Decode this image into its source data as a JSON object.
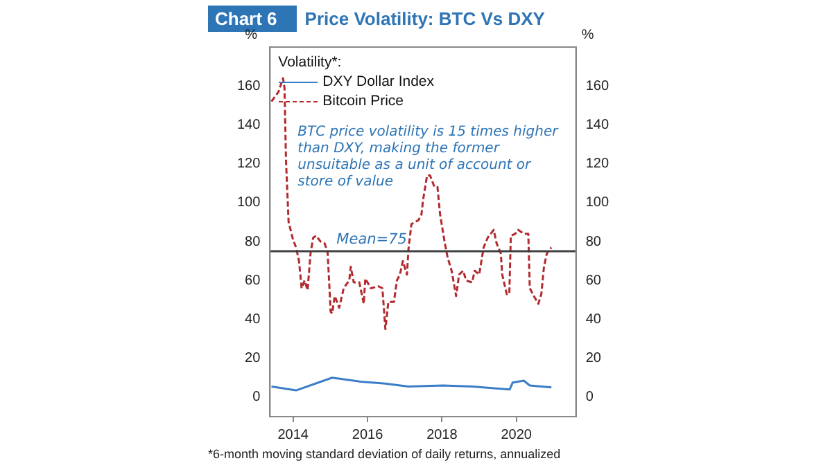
{
  "chart_data": {
    "type": "line",
    "title": "Price Volatility: BTC Vs DXY",
    "ylabel": "%",
    "y2label": "%",
    "legend_title": "Volatility*:",
    "legend": "top left",
    "grid": false,
    "marker": "none",
    "annotations": [
      "Chart 6",
      "BTC price volatility is 15 times higher than DXY, making the former unsuitable as a unit of account or store of value",
      "*6-month moving standard deviation of daily returns, annualized"
    ],
    "xlim": [
      2013.38,
      2021.6
    ],
    "xticks": [
      2014,
      2016,
      2018,
      2020
    ],
    "ylim": [
      -10,
      180
    ],
    "yticks": [
      0,
      20,
      40,
      60,
      80,
      100,
      120,
      140,
      160
    ],
    "y2lim": [
      -10,
      180
    ],
    "y2ticks": [
      0,
      20,
      40,
      60,
      80,
      100,
      120,
      140,
      160
    ],
    "ref_lines": [
      {
        "axis": "y",
        "value": 75,
        "label": "Mean=75",
        "color": "#404040"
      }
    ],
    "series": [
      {
        "name": "DXY Dollar Index",
        "color": "#3a7dc9",
        "line_style": "solid",
        "x": [
          2013.42,
          2014.08,
          2015.05,
          2015.82,
          2016.48,
          2017.1,
          2018.03,
          2018.81,
          2019.82,
          2019.9,
          2020.2,
          2020.36,
          2020.94
        ],
        "values": [
          5.5,
          3.5,
          10,
          8,
          7,
          5.5,
          6,
          5.5,
          4,
          7.5,
          8.5,
          6,
          5
        ]
      },
      {
        "name": "Bitcoin Price",
        "color": "#b22a2e",
        "line_style": "dashed",
        "x": [
          2013.42,
          2013.61,
          2013.73,
          2013.77,
          2013.81,
          2013.88,
          2014.0,
          2014.08,
          2014.16,
          2014.23,
          2014.31,
          2014.39,
          2014.47,
          2014.54,
          2014.62,
          2014.74,
          2014.85,
          2014.93,
          2015.01,
          2015.05,
          2015.12,
          2015.24,
          2015.36,
          2015.51,
          2015.55,
          2015.63,
          2015.78,
          2015.9,
          2015.94,
          2016.09,
          2016.29,
          2016.4,
          2016.48,
          2016.56,
          2016.71,
          2016.79,
          2016.87,
          2016.95,
          2017.06,
          2017.1,
          2017.18,
          2017.37,
          2017.45,
          2017.49,
          2017.6,
          2017.68,
          2017.8,
          2017.88,
          2017.95,
          2018.07,
          2018.15,
          2018.26,
          2018.38,
          2018.46,
          2018.57,
          2018.65,
          2018.81,
          2018.88,
          2019.0,
          2019.12,
          2019.23,
          2019.39,
          2019.47,
          2019.58,
          2019.62,
          2019.74,
          2019.81,
          2019.85,
          2019.97,
          2020.05,
          2020.2,
          2020.32,
          2020.36,
          2020.47,
          2020.59,
          2020.67,
          2020.74,
          2020.82,
          2020.94
        ],
        "values": [
          152,
          157,
          164,
          159,
          122,
          90,
          81,
          77,
          70,
          56,
          60,
          55,
          74,
          82,
          83,
          80,
          79,
          74,
          44,
          43,
          52,
          46,
          56,
          60,
          67,
          59,
          59,
          48,
          61,
          56,
          57,
          56,
          35,
          49,
          49,
          60,
          63,
          70,
          63,
          76,
          89,
          91,
          94,
          101,
          114,
          114,
          108,
          108,
          94,
          80,
          72,
          65,
          52,
          63,
          65,
          60,
          59,
          65,
          63,
          77,
          82,
          86,
          79,
          74,
          63,
          53,
          53,
          83,
          84,
          86,
          84,
          84,
          56,
          52,
          48,
          53,
          67,
          74,
          77
        ]
      }
    ]
  }
}
